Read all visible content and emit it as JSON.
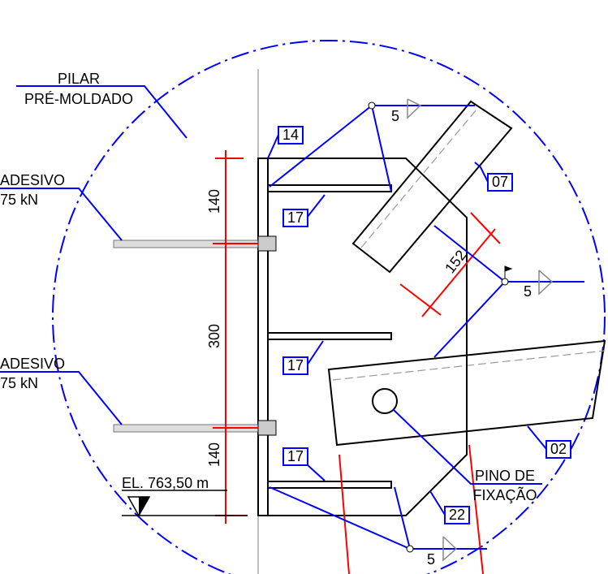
{
  "callouts": [
    {
      "lines": [
        "PILAR",
        "PRÉ-MOLDADO"
      ]
    },
    {
      "lines": [
        "ADESIVO",
        "75 kN"
      ]
    },
    {
      "lines": [
        "ADESIVO",
        "75 kN"
      ]
    },
    {
      "lines": [
        "PINO DE",
        "FIXAÇÃO"
      ]
    }
  ],
  "tags": [
    "14",
    "17",
    "17",
    "17",
    "07",
    "02",
    "22"
  ],
  "welds": [
    5,
    5,
    5
  ],
  "dimensions": [
    140,
    300,
    140,
    152
  ],
  "elevation": "EL. 763,50 m"
}
